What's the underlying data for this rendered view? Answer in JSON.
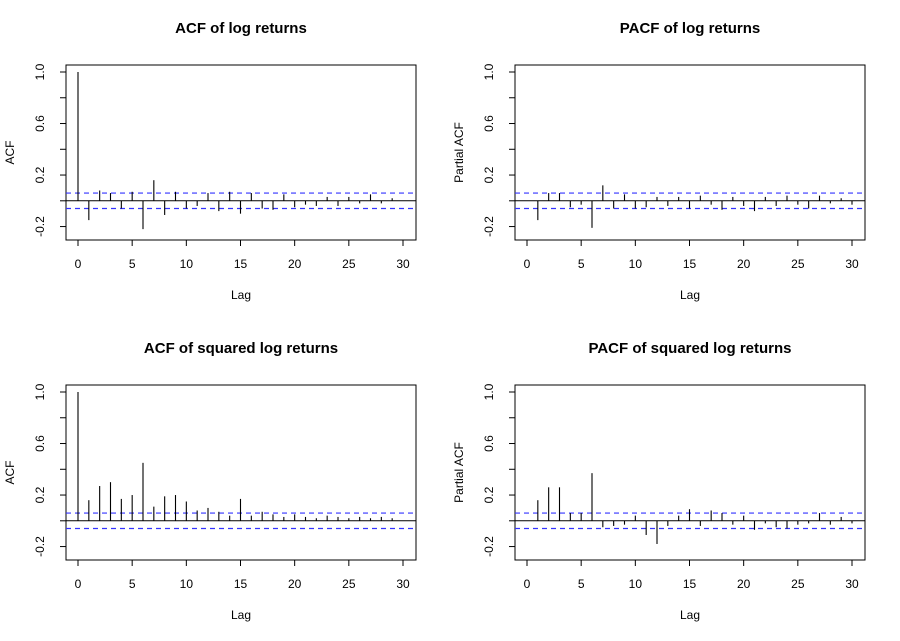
{
  "chart_data": [
    {
      "type": "bar",
      "title": "ACF of log returns",
      "xlabel": "Lag",
      "ylabel": "ACF",
      "xlim": [
        0,
        30
      ],
      "ylim": [
        -0.25,
        1.0
      ],
      "xticks": [
        0,
        5,
        10,
        15,
        20,
        25,
        30
      ],
      "yticks": [
        -0.2,
        0.2,
        0.6,
        1.0
      ],
      "ytick_labels": [
        "-0.2",
        "0.2",
        "0.6",
        "1.0"
      ],
      "ci": 0.06,
      "x": [
        0,
        1,
        2,
        3,
        4,
        5,
        6,
        7,
        8,
        9,
        10,
        11,
        12,
        13,
        14,
        15,
        16,
        17,
        18,
        19,
        20,
        21,
        22,
        23,
        24,
        25,
        26,
        27,
        28,
        29
      ],
      "values": [
        1.0,
        -0.15,
        0.08,
        0.06,
        -0.06,
        0.07,
        -0.22,
        0.16,
        -0.11,
        0.07,
        -0.06,
        -0.04,
        0.06,
        -0.08,
        0.07,
        -0.1,
        0.06,
        -0.06,
        -0.07,
        0.05,
        -0.05,
        -0.03,
        -0.04,
        0.03,
        -0.04,
        0.03,
        -0.02,
        0.05,
        -0.02,
        0.02
      ]
    },
    {
      "type": "bar",
      "title": "PACF of log returns",
      "xlabel": "Lag",
      "ylabel": "Partial ACF",
      "xlim": [
        0,
        30
      ],
      "ylim": [
        -0.25,
        1.0
      ],
      "xticks": [
        0,
        5,
        10,
        15,
        20,
        25,
        30
      ],
      "yticks": [
        -0.2,
        0.2,
        0.6,
        1.0
      ],
      "ytick_labels": [
        "-0.2",
        "0.2",
        "0.6",
        "1.0"
      ],
      "ci": 0.06,
      "x": [
        1,
        2,
        3,
        4,
        5,
        6,
        7,
        8,
        9,
        10,
        11,
        12,
        13,
        14,
        15,
        16,
        17,
        18,
        19,
        20,
        21,
        22,
        23,
        24,
        25,
        26,
        27,
        28,
        29,
        30
      ],
      "values": [
        -0.15,
        0.06,
        0.06,
        -0.05,
        -0.03,
        -0.21,
        0.12,
        -0.06,
        0.05,
        -0.06,
        -0.05,
        0.03,
        -0.04,
        0.03,
        -0.06,
        0.04,
        -0.03,
        -0.07,
        0.03,
        -0.04,
        -0.08,
        0.03,
        -0.04,
        0.04,
        -0.03,
        -0.06,
        0.04,
        -0.02,
        0.02,
        -0.03
      ]
    },
    {
      "type": "bar",
      "title": "ACF of squared log returns",
      "xlabel": "Lag",
      "ylabel": "ACF",
      "xlim": [
        0,
        30
      ],
      "ylim": [
        -0.25,
        1.0
      ],
      "xticks": [
        0,
        5,
        10,
        15,
        20,
        25,
        30
      ],
      "yticks": [
        -0.2,
        0.2,
        0.6,
        1.0
      ],
      "ytick_labels": [
        "-0.2",
        "0.2",
        "0.6",
        "1.0"
      ],
      "ci": 0.06,
      "x": [
        0,
        1,
        2,
        3,
        4,
        5,
        6,
        7,
        8,
        9,
        10,
        11,
        12,
        13,
        14,
        15,
        16,
        17,
        18,
        19,
        20,
        21,
        22,
        23,
        24,
        25,
        26,
        27,
        28,
        29
      ],
      "values": [
        1.0,
        0.16,
        0.27,
        0.3,
        0.17,
        0.2,
        0.45,
        0.11,
        0.19,
        0.2,
        0.15,
        0.08,
        0.1,
        0.07,
        0.04,
        0.17,
        0.04,
        0.07,
        0.05,
        0.03,
        0.05,
        0.03,
        0.02,
        0.04,
        0.03,
        0.02,
        0.03,
        0.02,
        0.03,
        0.02
      ]
    },
    {
      "type": "bar",
      "title": "PACF of squared log returns",
      "xlabel": "Lag",
      "ylabel": "Partial ACF",
      "xlim": [
        0,
        30
      ],
      "ylim": [
        -0.25,
        1.0
      ],
      "xticks": [
        0,
        5,
        10,
        15,
        20,
        25,
        30
      ],
      "yticks": [
        -0.2,
        0.2,
        0.6,
        1.0
      ],
      "ytick_labels": [
        "-0.2",
        "0.2",
        "0.6",
        "1.0"
      ],
      "ci": 0.06,
      "x": [
        1,
        2,
        3,
        4,
        5,
        6,
        7,
        8,
        9,
        10,
        11,
        12,
        13,
        14,
        15,
        16,
        17,
        18,
        19,
        20,
        21,
        22,
        23,
        24,
        25,
        26,
        27,
        28,
        29,
        30
      ],
      "values": [
        0.16,
        0.26,
        0.26,
        0.06,
        0.06,
        0.37,
        -0.05,
        -0.04,
        -0.03,
        0.04,
        -0.11,
        -0.18,
        -0.04,
        0.04,
        0.09,
        -0.04,
        0.08,
        0.06,
        -0.03,
        0.04,
        -0.07,
        -0.02,
        -0.05,
        -0.06,
        -0.03,
        -0.02,
        0.06,
        -0.03,
        0.03,
        -0.02
      ]
    }
  ],
  "colors": {
    "ci_line": "#3333ff",
    "bars": "#000000",
    "axes": "#000000"
  }
}
